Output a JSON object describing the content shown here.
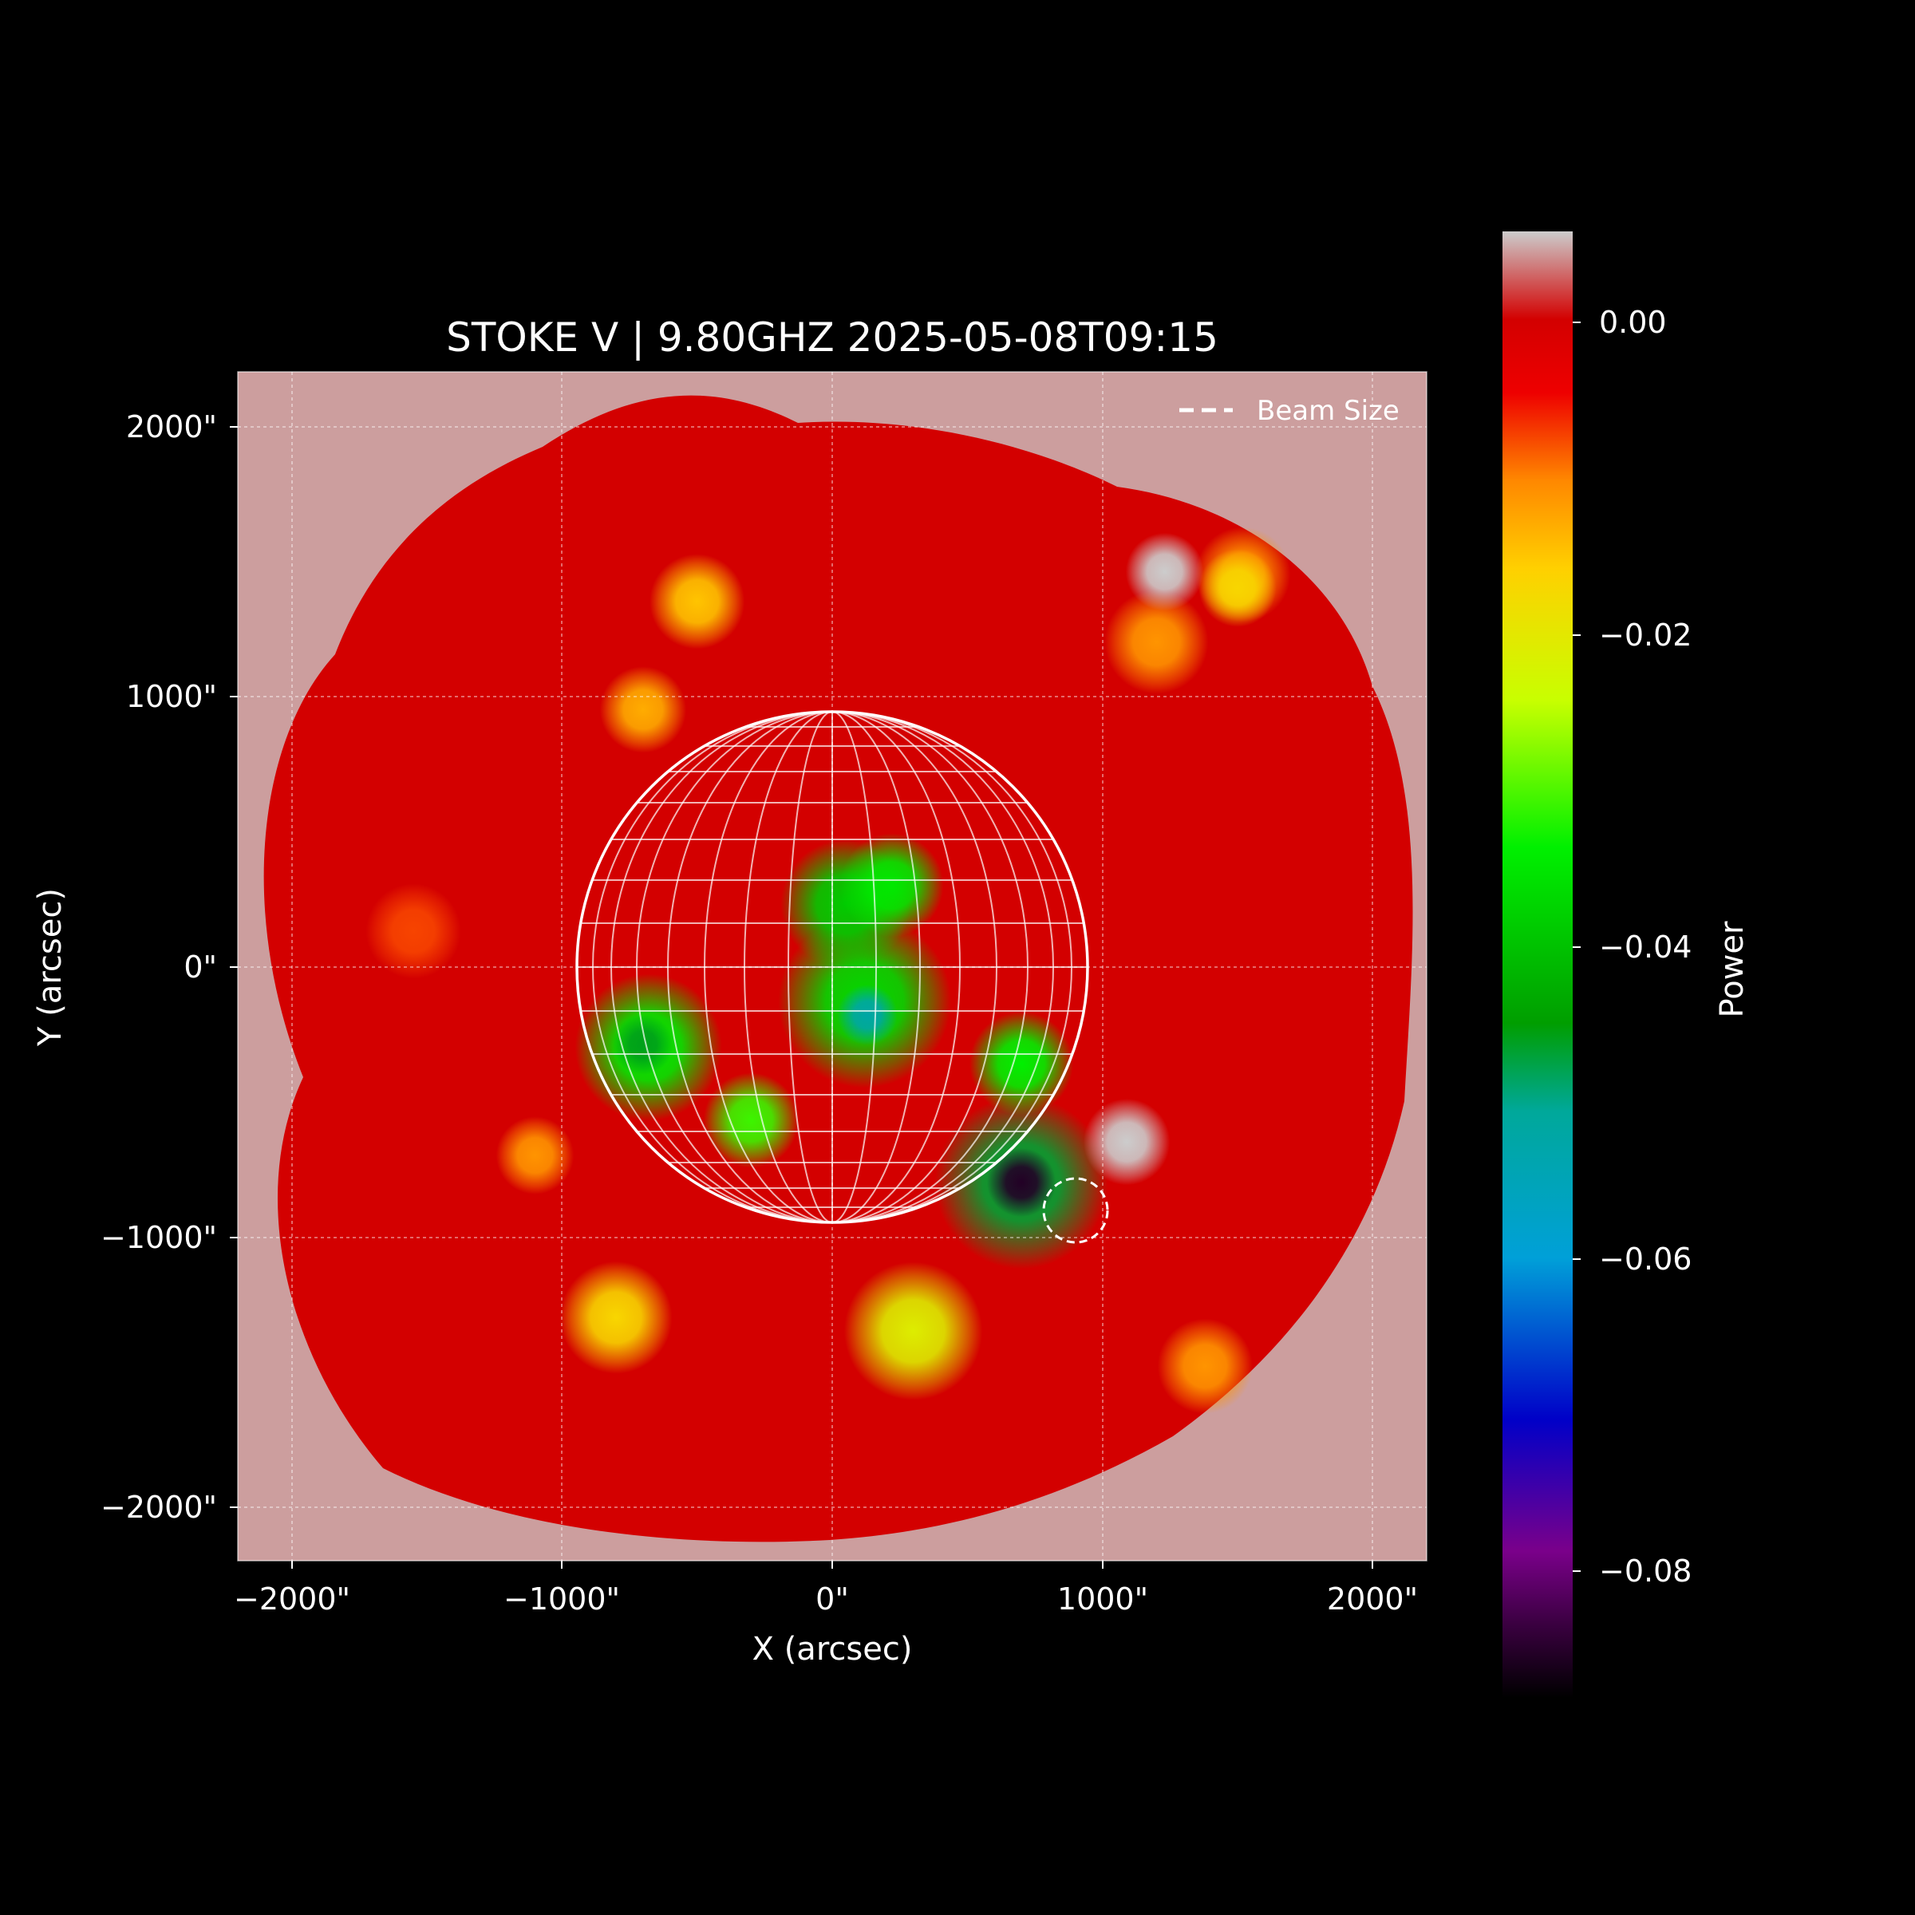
{
  "chart_data": {
    "type": "heatmap",
    "title": "STOKE V | 9.80GHZ 2025-05-08T09:15",
    "xlabel": "X (arcsec)",
    "ylabel": "Y (arcsec)",
    "xlim": [
      -2200,
      2200
    ],
    "ylim": [
      -2200,
      2200
    ],
    "x_ticks": [
      -2000,
      -1000,
      0,
      1000,
      2000
    ],
    "y_ticks": [
      -2000,
      -1000,
      0,
      1000,
      2000
    ],
    "x_tick_labels": [
      "−2000\"",
      "−1000\"",
      "0\"",
      "1000\"",
      "2000\""
    ],
    "y_tick_labels": [
      "−2000\"",
      "−1000\"",
      "0\"",
      "1000\"",
      "2000\""
    ],
    "grid": true,
    "colorbar": {
      "label": "Power",
      "range": [
        -0.09,
        0.005
      ],
      "ticks": [
        0.0,
        -0.02,
        -0.04,
        -0.06,
        -0.08
      ],
      "tick_labels": [
        "0.00",
        "−0.02",
        "−0.04",
        "−0.06",
        "−0.08"
      ]
    },
    "legend": {
      "position": "top-right",
      "entries": [
        {
          "label": "Beam Size",
          "style": "dashed"
        }
      ]
    },
    "solar_disk": {
      "center": [
        0,
        0
      ],
      "radius_arcsec": 950
    },
    "beam": {
      "center": [
        900,
        -900
      ],
      "radius_arcsec": 120
    },
    "sources": [
      {
        "x": 700,
        "y": -800,
        "sigma": 80,
        "value": -0.087
      },
      {
        "x": 700,
        "y": -800,
        "sigma": 200,
        "value": -0.048
      },
      {
        "x": 130,
        "y": -180,
        "sigma": 70,
        "value": -0.054
      },
      {
        "x": 120,
        "y": -130,
        "sigma": 200,
        "value": -0.038
      },
      {
        "x": -700,
        "y": -290,
        "sigma": 70,
        "value": -0.047
      },
      {
        "x": -680,
        "y": -300,
        "sigma": 170,
        "value": -0.036
      },
      {
        "x": 50,
        "y": 230,
        "sigma": 150,
        "value": -0.04
      },
      {
        "x": 220,
        "y": 300,
        "sigma": 120,
        "value": -0.036
      },
      {
        "x": 700,
        "y": -360,
        "sigma": 120,
        "value": -0.035
      },
      {
        "x": -300,
        "y": -570,
        "sigma": 110,
        "value": -0.032
      },
      {
        "x": -500,
        "y": 1350,
        "sigma": 110,
        "value": -0.016
      },
      {
        "x": -700,
        "y": 950,
        "sigma": 100,
        "value": -0.014
      },
      {
        "x": -800,
        "y": -1300,
        "sigma": 130,
        "value": -0.018
      },
      {
        "x": 300,
        "y": -1350,
        "sigma": 160,
        "value": -0.022
      },
      {
        "x": -1100,
        "y": -700,
        "sigma": 90,
        "value": -0.012
      },
      {
        "x": 1200,
        "y": 1200,
        "sigma": 120,
        "value": -0.012
      },
      {
        "x": 1520,
        "y": 1450,
        "sigma": 110,
        "value": -0.012
      },
      {
        "x": 1380,
        "y": -1480,
        "sigma": 110,
        "value": -0.012
      },
      {
        "x": 1230,
        "y": 1460,
        "sigma": 90,
        "value": 0.005
      },
      {
        "x": 1090,
        "y": -650,
        "sigma": 100,
        "value": 0.005
      },
      {
        "x": -1550,
        "y": 130,
        "sigma": 110,
        "value": -0.008
      },
      {
        "x": 1500,
        "y": 1400,
        "sigma": 90,
        "value": -0.018
      }
    ]
  }
}
